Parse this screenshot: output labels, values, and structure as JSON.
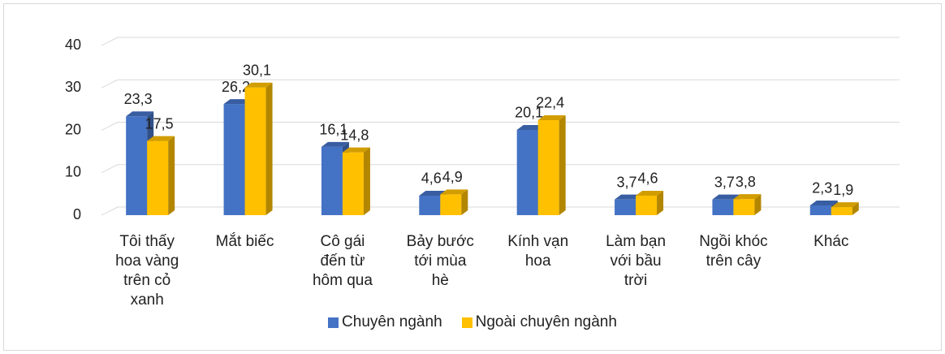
{
  "chart_data": {
    "type": "bar3d",
    "categories": [
      "Tôi thấy hoa vàng trên cỏ xanh",
      "Mắt biếc",
      "Cô gái đến từ hôm qua",
      "Bảy bước tới mùa hè",
      "Kính vạn hoa",
      "Làm bạn với bầu trời",
      "Ngồi khóc trên cây",
      "Khác"
    ],
    "series": [
      {
        "name": "Chuyên ngành",
        "color": "#4472c4",
        "values": [
          23.3,
          26.2,
          16.1,
          4.6,
          20.1,
          3.7,
          3.7,
          2.3
        ],
        "value_labels": [
          "23,3",
          "26,2",
          "16,1",
          "4,6",
          "20,1",
          "3,7",
          "3,7",
          "2,3"
        ]
      },
      {
        "name": "Ngoài chuyên ngành",
        "color": "#ffc000",
        "values": [
          17.5,
          30.1,
          14.8,
          4.9,
          22.4,
          4.6,
          3.8,
          1.9
        ],
        "value_labels": [
          "17,5",
          "30,1",
          "14,8",
          "4,9",
          "22,4",
          "4,6",
          "3,8",
          "1,9"
        ]
      }
    ],
    "ylim": [
      0,
      40
    ],
    "yticks": [
      0,
      10,
      20,
      30,
      40
    ],
    "grid": true,
    "legend": "bottom"
  }
}
